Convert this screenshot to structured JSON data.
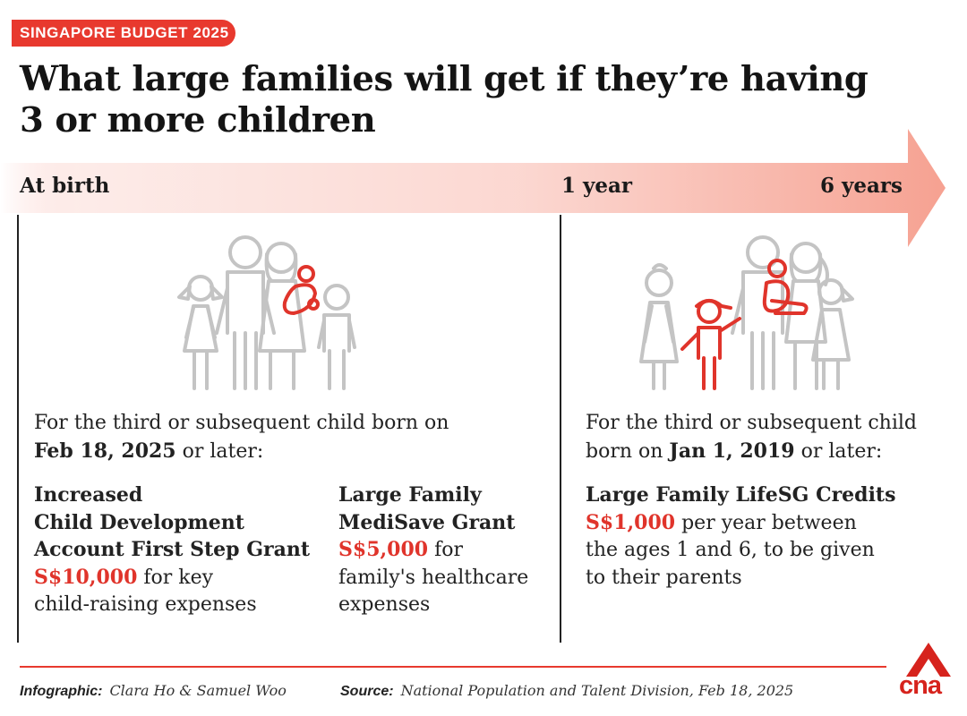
{
  "badge": "SINGAPORE BUDGET 2025",
  "title": {
    "line1": "What large families will get if they’re having",
    "line2": "3 or more children"
  },
  "timeline": {
    "at_birth": "At birth",
    "one_year": "1 year",
    "six_years": "6 years"
  },
  "left": {
    "intro_line1": "For the third or subsequent child born on",
    "intro_date": "Feb 18, 2025",
    "intro_rest": " or later:",
    "grant1": {
      "name_line1": "Increased",
      "name_line2": "Child Development",
      "name_line3": "Account First Step Grant",
      "amount": "S$10,000",
      "desc1": " for key",
      "desc2": "child-raising expenses"
    },
    "grant2": {
      "name_line1": "Large Family",
      "name_line2": "MediSave Grant",
      "amount": "S$5,000",
      "desc1": " for",
      "desc2": "family's healthcare",
      "desc3": "expenses"
    }
  },
  "right": {
    "intro_line1": "For the third or subsequent child",
    "intro_pre": "born on ",
    "intro_date": "Jan 1, 2019",
    "intro_rest": " or later:",
    "grant": {
      "name": "Large Family LifeSG Credits",
      "amount": "S$1,000",
      "desc1": " per year between",
      "desc2": "the ages 1 and 6, to be given",
      "desc3": "to their parents"
    }
  },
  "footer": {
    "infographic_label": "Infographic:",
    "infographic_value": "Clara Ho & Samuel Woo",
    "source_label": "Source:",
    "source_value": "National Population and Talent Division, Feb 18, 2025",
    "logo": "cna"
  },
  "colors": {
    "accent": "#e8392e",
    "highlight": "#e0342b",
    "figure_gray": "#c4c4c4"
  }
}
